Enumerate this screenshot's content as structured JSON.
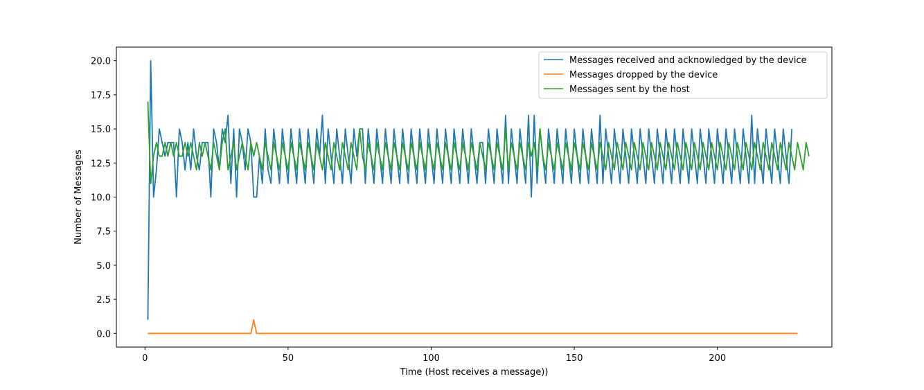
{
  "chart_data": {
    "type": "line",
    "title": "",
    "xlabel": "Time (Host receives a message))",
    "ylabel": "Number of Messages",
    "xlim": [
      -10,
      240
    ],
    "ylim": [
      -1,
      21
    ],
    "xticks": [
      0,
      50,
      100,
      150,
      200
    ],
    "yticks": [
      0.0,
      2.5,
      5.0,
      7.5,
      10.0,
      12.5,
      15.0,
      17.5,
      20.0
    ],
    "xtick_labels": [
      "0",
      "50",
      "100",
      "150",
      "200"
    ],
    "ytick_labels": [
      "0.0",
      "2.5",
      "5.0",
      "7.5",
      "10.0",
      "12.5",
      "15.0",
      "17.5",
      "20.0"
    ],
    "legend_position": "top-right",
    "series": [
      {
        "name": "Messages received and acknowledged by the device",
        "color": "#1f77b4",
        "x_start": 1,
        "values": [
          1,
          20,
          10,
          12,
          15,
          14,
          13,
          14,
          14,
          14,
          10,
          15,
          14,
          12,
          14,
          12,
          15,
          13,
          12,
          14,
          14,
          14,
          10,
          15,
          14,
          12,
          15,
          14,
          16,
          11,
          15,
          10,
          15,
          14,
          12,
          15,
          14,
          10,
          10,
          13,
          11,
          15,
          12,
          11,
          15,
          13,
          11,
          15,
          13,
          11,
          15,
          13,
          11,
          15,
          13,
          11,
          15,
          13,
          11,
          15,
          13,
          16,
          11,
          15,
          13,
          11,
          15,
          13,
          11,
          15,
          13,
          11,
          15,
          13,
          15,
          15,
          11,
          15,
          13,
          11,
          15,
          13,
          11,
          15,
          13,
          11,
          15,
          13,
          11,
          15,
          13,
          11,
          15,
          13,
          11,
          15,
          13,
          11,
          15,
          13,
          11,
          15,
          13,
          11,
          15,
          13,
          11,
          15,
          13,
          11,
          15,
          13,
          11,
          15,
          13,
          11,
          14,
          14,
          11,
          15,
          13,
          11,
          15,
          13,
          11,
          16,
          11,
          15,
          13,
          11,
          15,
          13,
          11,
          16,
          10,
          16,
          11,
          15,
          13,
          11,
          15,
          13,
          11,
          15,
          13,
          11,
          15,
          13,
          11,
          15,
          13,
          11,
          15,
          13,
          11,
          15,
          13,
          11,
          16,
          11,
          15,
          13,
          11,
          15,
          13,
          11,
          15,
          13,
          11,
          15,
          13,
          11,
          15,
          13,
          11,
          15,
          13,
          11,
          15,
          13,
          11,
          15,
          13,
          11,
          15,
          13,
          11,
          15,
          13,
          11,
          15,
          13,
          11,
          15,
          13,
          11,
          15,
          13,
          11,
          15,
          13,
          11,
          15,
          13,
          11,
          15,
          13,
          11,
          15,
          13,
          11,
          16,
          11,
          15,
          13,
          11,
          15,
          13,
          11,
          15,
          13,
          11,
          15,
          13,
          11,
          15
        ]
      },
      {
        "name": "Messages dropped by the device",
        "color": "#ff7f0e",
        "x_start": 1,
        "values": [
          0,
          0,
          0,
          0,
          0,
          0,
          0,
          0,
          0,
          0,
          0,
          0,
          0,
          0,
          0,
          0,
          0,
          0,
          0,
          0,
          0,
          0,
          0,
          0,
          0,
          0,
          0,
          0,
          0,
          0,
          0,
          0,
          0,
          0,
          0,
          0,
          0,
          1,
          0,
          0,
          0,
          0,
          0,
          0,
          0,
          0,
          0,
          0,
          0,
          0,
          0,
          0,
          0,
          0,
          0,
          0,
          0,
          0,
          0,
          0,
          0,
          0,
          0,
          0,
          0,
          0,
          0,
          0,
          0,
          0,
          0,
          0,
          0,
          0,
          0,
          0,
          0,
          0,
          0,
          0,
          0,
          0,
          0,
          0,
          0,
          0,
          0,
          0,
          0,
          0,
          0,
          0,
          0,
          0,
          0,
          0,
          0,
          0,
          0,
          0,
          0,
          0,
          0,
          0,
          0,
          0,
          0,
          0,
          0,
          0,
          0,
          0,
          0,
          0,
          0,
          0,
          0,
          0,
          0,
          0,
          0,
          0,
          0,
          0,
          0,
          0,
          0,
          0,
          0,
          0,
          0,
          0,
          0,
          0,
          0,
          0,
          0,
          0,
          0,
          0,
          0,
          0,
          0,
          0,
          0,
          0,
          0,
          0,
          0,
          0,
          0,
          0,
          0,
          0,
          0,
          0,
          0,
          0,
          0,
          0,
          0,
          0,
          0,
          0,
          0,
          0,
          0,
          0,
          0,
          0,
          0,
          0,
          0,
          0,
          0,
          0,
          0,
          0,
          0,
          0,
          0,
          0,
          0,
          0,
          0,
          0,
          0,
          0,
          0,
          0,
          0,
          0,
          0,
          0,
          0,
          0,
          0,
          0,
          0,
          0,
          0,
          0,
          0,
          0,
          0,
          0,
          0,
          0,
          0,
          0,
          0,
          0,
          0,
          0,
          0,
          0,
          0,
          0,
          0,
          0,
          0,
          0,
          0,
          0,
          0,
          0,
          0,
          0
        ]
      },
      {
        "name": "Messages sent by the host",
        "color": "#2ca02c",
        "x_start": 1,
        "values": [
          17,
          11,
          13,
          14,
          13,
          13,
          14,
          13,
          14,
          13,
          14,
          13,
          13,
          14,
          13,
          14,
          13,
          12,
          14,
          13,
          14,
          13,
          12,
          14,
          13,
          12,
          14,
          15,
          12,
          13,
          14,
          12,
          13,
          14,
          13,
          12,
          14,
          13,
          14,
          13,
          12,
          14,
          13,
          12,
          14,
          13,
          12,
          14,
          13,
          12,
          14,
          13,
          12,
          14,
          13,
          12,
          14,
          13,
          12,
          14,
          13,
          12,
          14,
          13,
          12,
          14,
          13,
          12,
          14,
          13,
          12,
          14,
          13,
          12,
          15,
          13,
          12,
          14,
          13,
          12,
          14,
          13,
          12,
          14,
          13,
          12,
          14,
          13,
          12,
          14,
          13,
          12,
          14,
          13,
          12,
          14,
          13,
          12,
          14,
          13,
          12,
          14,
          13,
          12,
          14,
          13,
          12,
          14,
          13,
          12,
          14,
          13,
          12,
          14,
          13,
          12,
          14,
          13,
          12,
          14,
          13,
          12,
          14,
          13,
          12,
          15,
          12,
          14,
          13,
          12,
          14,
          13,
          12,
          14,
          13,
          14,
          12,
          15,
          13,
          12,
          14,
          13,
          12,
          14,
          13,
          12,
          14,
          13,
          12,
          14,
          13,
          12,
          14,
          13,
          12,
          14,
          13,
          12,
          14,
          13,
          12,
          14,
          13,
          12,
          14,
          13,
          12,
          14,
          13,
          12,
          14,
          13,
          12,
          14,
          13,
          12,
          14,
          13,
          12,
          14,
          13,
          12,
          14,
          13,
          12,
          14,
          13,
          12,
          14,
          13,
          12,
          14,
          13,
          12,
          14,
          13,
          12,
          14,
          13,
          12,
          14,
          13,
          12,
          14,
          13,
          12,
          14,
          13,
          12,
          14,
          13,
          12,
          14,
          13,
          12,
          14,
          13,
          12,
          14,
          13,
          12,
          14,
          13,
          12,
          14,
          13,
          12,
          14,
          13,
          12,
          14,
          13
        ]
      }
    ]
  }
}
